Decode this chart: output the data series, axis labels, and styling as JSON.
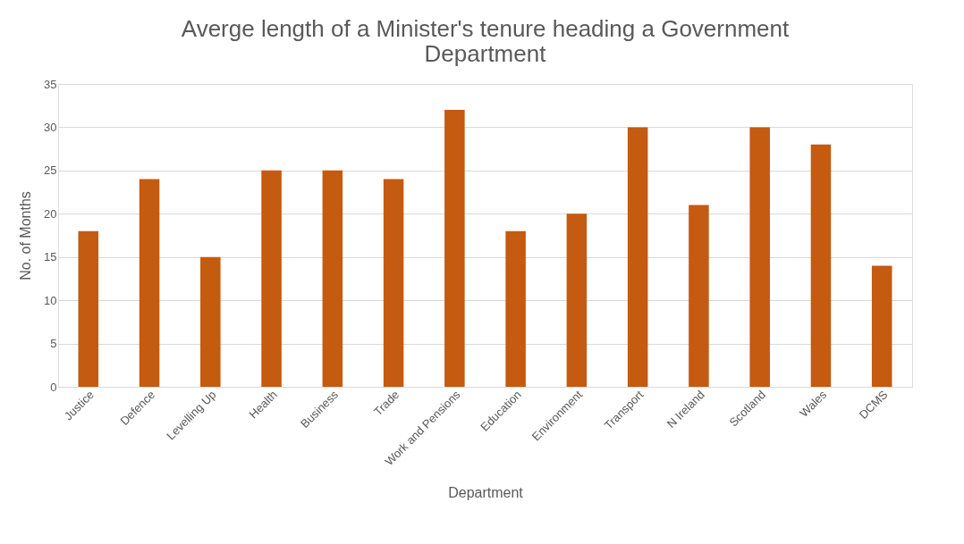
{
  "chart_data": {
    "type": "bar",
    "title": "Averge length of a Minister's tenure heading a Government Department",
    "xlabel": "Department",
    "ylabel": "No. of Months",
    "categories": [
      "Justice",
      "Defence",
      "Levelling Up",
      "Health",
      "Business",
      "Trade",
      "Work and Pensions",
      "Education",
      "Environment",
      "Transport",
      "N Ireland",
      "Scotland",
      "Wales",
      "DCMS"
    ],
    "values": [
      18,
      24,
      15,
      25,
      25,
      24,
      32,
      18,
      20,
      30,
      21,
      30,
      28,
      14
    ],
    "color": "#c55a11",
    "ylim": [
      0,
      35
    ],
    "yticks": [
      0,
      5,
      10,
      15,
      20,
      25,
      30,
      35
    ],
    "grid": "y"
  }
}
